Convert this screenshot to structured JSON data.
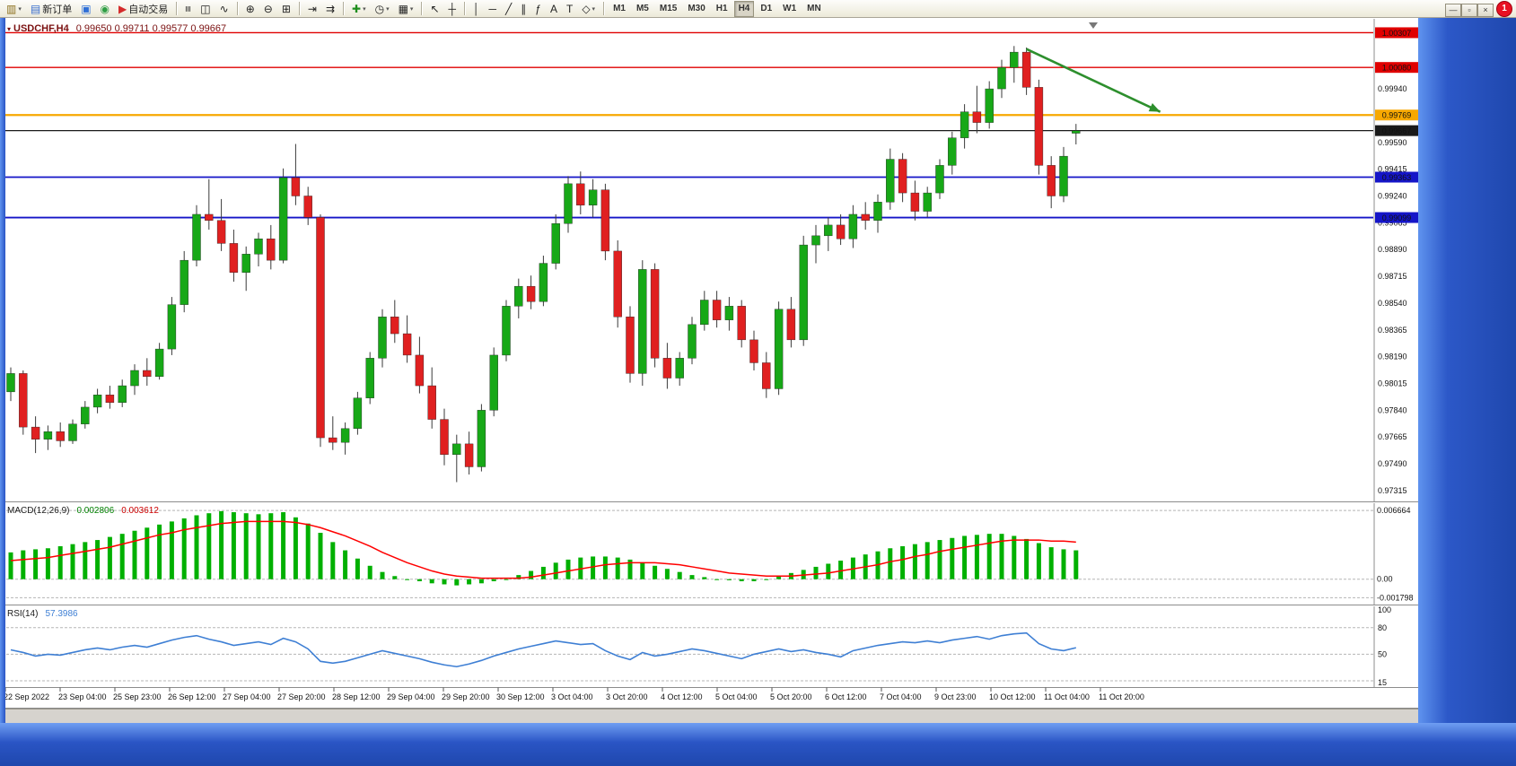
{
  "window": {
    "notification_count": "1",
    "controls": [
      {
        "name": "minimize-button",
        "glyph": "—"
      },
      {
        "name": "restore-button",
        "glyph": "▫"
      },
      {
        "name": "close-button",
        "glyph": "×"
      }
    ]
  },
  "toolbar": {
    "caret": "▾",
    "active_timeframe": "H4",
    "items": [
      {
        "name": "new-chart-button",
        "glyph": "▥",
        "color": "#8a6d1a",
        "caret": true
      },
      {
        "name": "new-order-button",
        "glyph": "▤",
        "color": "#3a6fd0",
        "label": "新订单"
      },
      {
        "name": "terminal-button",
        "glyph": "▣",
        "color": "#2f6fd6"
      },
      {
        "name": "metaquotes-chat-button",
        "glyph": "◉",
        "color": "#2f9e44"
      },
      {
        "name": "auto-trading-button",
        "glyph": "▶",
        "color": "#d42b2b",
        "label": "自动交易"
      },
      {
        "name": "sep"
      },
      {
        "name": "bars-chart-button",
        "glyph": "≡",
        "cls": "rot90"
      },
      {
        "name": "candles-chart-button",
        "glyph": "◫"
      },
      {
        "name": "line-chart-button",
        "glyph": "∿"
      },
      {
        "name": "sep"
      },
      {
        "name": "zoom-in-button",
        "glyph": "⊕"
      },
      {
        "name": "zoom-out-button",
        "glyph": "⊖"
      },
      {
        "name": "tile-windows-button",
        "glyph": "⊞"
      },
      {
        "name": "sep"
      },
      {
        "name": "auto-scroll-button",
        "glyph": "⇥"
      },
      {
        "name": "chart-shift-button",
        "glyph": "⇉"
      },
      {
        "name": "sep"
      },
      {
        "name": "indicators-button",
        "glyph": "✚",
        "color": "#1e8e1e",
        "caret": true
      },
      {
        "name": "periods-button",
        "glyph": "◷",
        "caret": true
      },
      {
        "name": "templates-button",
        "glyph": "▦",
        "caret": true
      },
      {
        "name": "sep"
      },
      {
        "name": "cursor-button",
        "glyph": "↖"
      },
      {
        "name": "crosshair-button",
        "glyph": "┼"
      },
      {
        "name": "sep"
      },
      {
        "name": "vertical-line-button",
        "glyph": "│"
      },
      {
        "name": "horizontal-line-button",
        "glyph": "─"
      },
      {
        "name": "trendline-button",
        "glyph": "╱"
      },
      {
        "name": "channel-button",
        "glyph": "∥"
      },
      {
        "name": "fibonacci-button",
        "glyph": "ƒ"
      },
      {
        "name": "text-button",
        "glyph": "A"
      },
      {
        "name": "label-button",
        "glyph": "T"
      },
      {
        "name": "shapes-button",
        "glyph": "◇",
        "caret": true
      },
      {
        "name": "sep"
      },
      {
        "name": "tf-m1-button",
        "tf": "M1"
      },
      {
        "name": "tf-m5-button",
        "tf": "M5"
      },
      {
        "name": "tf-m15-button",
        "tf": "M15"
      },
      {
        "name": "tf-m30-button",
        "tf": "M30"
      },
      {
        "name": "tf-h1-button",
        "tf": "H1"
      },
      {
        "name": "tf-h4-button",
        "tf": "H4"
      },
      {
        "name": "tf-d1-button",
        "tf": "D1"
      },
      {
        "name": "tf-w1-button",
        "tf": "W1"
      },
      {
        "name": "tf-mn-button",
        "tf": "MN"
      }
    ]
  },
  "chart_data": {
    "type": "candlestick",
    "symbol": "USDCHF",
    "timeframe": "H4",
    "title": {
      "marker": "▾",
      "symbol": "USDCHF,H4",
      "ohlc": "0.99650 0.99711 0.99577 0.99667"
    },
    "colors": {
      "bull": "#17a817",
      "bear": "#e02020",
      "wick": "#3a3a3a",
      "macd_hist": "#00b000",
      "macd_signal": "#ff0000",
      "rsi_line": "#3e7fd4",
      "arrow": "#2d8f2d",
      "line_red": "#e00000",
      "line_orange": "#f7a800",
      "line_blue": "#1515c8",
      "line_black": "#1a1a1a"
    },
    "price_axis_labels": [
      "0.99940",
      "0.99590",
      "0.99415",
      "0.99240",
      "0.99065",
      "0.98890",
      "0.98715",
      "0.98540",
      "0.98365",
      "0.98190",
      "0.98015",
      "0.97840",
      "0.97665",
      "0.97490",
      "0.97315"
    ],
    "hlines": [
      {
        "label": "1.00307",
        "color": "#e00000",
        "width": 1.3
      },
      {
        "label": "1.00080",
        "color": "#e00000",
        "width": 1.3
      },
      {
        "label": "0.99769",
        "color": "#f7a800",
        "width": 2.2
      },
      {
        "label": "0.99667",
        "color": "#1a1a1a",
        "width": 1.2
      },
      {
        "label": "0.99363",
        "color": "#1515c8",
        "width": 1.8
      },
      {
        "label": "0.99099",
        "color": "#1515c8",
        "width": 1.8
      }
    ],
    "time_axis_labels": [
      "22 Sep 2022",
      "23 Sep 04:00",
      "25 Sep 23:00",
      "26 Sep 12:00",
      "27 Sep 04:00",
      "27 Sep 20:00",
      "28 Sep 12:00",
      "29 Sep 04:00",
      "29 Sep 20:00",
      "30 Sep 12:00",
      "3 Oct 04:00",
      "3 Oct 20:00",
      "4 Oct 12:00",
      "5 Oct 04:00",
      "5 Oct 20:00",
      "6 Oct 12:00",
      "7 Oct 04:00",
      "9 Oct 23:00",
      "10 Oct 12:00",
      "11 Oct 04:00",
      "11 Oct 20:00"
    ],
    "trend_arrow": {
      "from_bar": 82,
      "from_price": 1.002,
      "to_bar": 92.8,
      "to_price": 0.9979
    },
    "candles": [
      [
        0.9796,
        0.9812,
        0.979,
        0.9808
      ],
      [
        0.9808,
        0.981,
        0.9768,
        0.9773
      ],
      [
        0.9773,
        0.978,
        0.9756,
        0.9765
      ],
      [
        0.9765,
        0.9774,
        0.9758,
        0.977
      ],
      [
        0.977,
        0.9776,
        0.976,
        0.9764
      ],
      [
        0.9764,
        0.9778,
        0.9762,
        0.9775
      ],
      [
        0.9775,
        0.979,
        0.9772,
        0.9786
      ],
      [
        0.9786,
        0.9798,
        0.9782,
        0.9794
      ],
      [
        0.9794,
        0.98,
        0.9785,
        0.9789
      ],
      [
        0.9789,
        0.9804,
        0.9786,
        0.98
      ],
      [
        0.98,
        0.9814,
        0.9794,
        0.981
      ],
      [
        0.981,
        0.9818,
        0.98,
        0.9806
      ],
      [
        0.9806,
        0.9828,
        0.9804,
        0.9824
      ],
      [
        0.9824,
        0.9858,
        0.982,
        0.9853
      ],
      [
        0.9853,
        0.9888,
        0.9848,
        0.9882
      ],
      [
        0.9882,
        0.9918,
        0.9878,
        0.9912
      ],
      [
        0.9912,
        0.9935,
        0.9902,
        0.9908
      ],
      [
        0.9908,
        0.9922,
        0.9888,
        0.9893
      ],
      [
        0.9893,
        0.9902,
        0.9868,
        0.9874
      ],
      [
        0.9874,
        0.9891,
        0.9862,
        0.9886
      ],
      [
        0.9886,
        0.99,
        0.9878,
        0.9896
      ],
      [
        0.9896,
        0.9905,
        0.9876,
        0.9882
      ],
      [
        0.9882,
        0.9942,
        0.988,
        0.9936
      ],
      [
        0.9936,
        0.9958,
        0.9918,
        0.9924
      ],
      [
        0.9924,
        0.993,
        0.9905,
        0.991
      ],
      [
        0.991,
        0.9912,
        0.976,
        0.9766
      ],
      [
        0.9766,
        0.978,
        0.9758,
        0.9763
      ],
      [
        0.9763,
        0.9776,
        0.9755,
        0.9772
      ],
      [
        0.9772,
        0.9796,
        0.9768,
        0.9792
      ],
      [
        0.9792,
        0.9822,
        0.9788,
        0.9818
      ],
      [
        0.9818,
        0.985,
        0.9812,
        0.9845
      ],
      [
        0.9845,
        0.9856,
        0.9828,
        0.9834
      ],
      [
        0.9834,
        0.9846,
        0.9815,
        0.982
      ],
      [
        0.982,
        0.9832,
        0.9795,
        0.98
      ],
      [
        0.98,
        0.9812,
        0.9772,
        0.9778
      ],
      [
        0.9778,
        0.9785,
        0.9748,
        0.9755
      ],
      [
        0.9755,
        0.9768,
        0.9737,
        0.9762
      ],
      [
        0.9762,
        0.977,
        0.9742,
        0.9747
      ],
      [
        0.9747,
        0.9788,
        0.9744,
        0.9784
      ],
      [
        0.9784,
        0.9825,
        0.978,
        0.982
      ],
      [
        0.982,
        0.9856,
        0.9816,
        0.9852
      ],
      [
        0.9852,
        0.987,
        0.9844,
        0.9865
      ],
      [
        0.9865,
        0.9872,
        0.985,
        0.9855
      ],
      [
        0.9855,
        0.9885,
        0.9852,
        0.988
      ],
      [
        0.988,
        0.9912,
        0.9876,
        0.9906
      ],
      [
        0.9906,
        0.9937,
        0.99,
        0.9932
      ],
      [
        0.9932,
        0.994,
        0.9912,
        0.9918
      ],
      [
        0.9918,
        0.9935,
        0.991,
        0.9928
      ],
      [
        0.9928,
        0.9932,
        0.9882,
        0.9888
      ],
      [
        0.9888,
        0.9895,
        0.9838,
        0.9845
      ],
      [
        0.9845,
        0.9852,
        0.9802,
        0.9808
      ],
      [
        0.9808,
        0.9882,
        0.98,
        0.9876
      ],
      [
        0.9876,
        0.988,
        0.9812,
        0.9818
      ],
      [
        0.9818,
        0.9828,
        0.9798,
        0.9805
      ],
      [
        0.9805,
        0.9822,
        0.98,
        0.9818
      ],
      [
        0.9818,
        0.9845,
        0.9814,
        0.984
      ],
      [
        0.984,
        0.9862,
        0.9836,
        0.9856
      ],
      [
        0.9856,
        0.9862,
        0.9838,
        0.9843
      ],
      [
        0.9843,
        0.9858,
        0.9836,
        0.9852
      ],
      [
        0.9852,
        0.9856,
        0.9825,
        0.983
      ],
      [
        0.983,
        0.9836,
        0.981,
        0.9815
      ],
      [
        0.9815,
        0.9822,
        0.9792,
        0.9798
      ],
      [
        0.9798,
        0.9855,
        0.9794,
        0.985
      ],
      [
        0.985,
        0.9858,
        0.9825,
        0.983
      ],
      [
        0.983,
        0.9898,
        0.9826,
        0.9892
      ],
      [
        0.9892,
        0.9905,
        0.988,
        0.9898
      ],
      [
        0.9898,
        0.991,
        0.9888,
        0.9905
      ],
      [
        0.9905,
        0.9912,
        0.9892,
        0.9896
      ],
      [
        0.9896,
        0.9918,
        0.989,
        0.9912
      ],
      [
        0.9912,
        0.992,
        0.9902,
        0.9908
      ],
      [
        0.9908,
        0.9925,
        0.99,
        0.992
      ],
      [
        0.992,
        0.9955,
        0.9915,
        0.9948
      ],
      [
        0.9948,
        0.9952,
        0.992,
        0.9926
      ],
      [
        0.9926,
        0.9934,
        0.9908,
        0.9914
      ],
      [
        0.9914,
        0.993,
        0.991,
        0.9926
      ],
      [
        0.9926,
        0.9948,
        0.9922,
        0.9944
      ],
      [
        0.9944,
        0.9966,
        0.9938,
        0.9962
      ],
      [
        0.9962,
        0.9984,
        0.9955,
        0.9979
      ],
      [
        0.9979,
        0.9996,
        0.9965,
        0.9972
      ],
      [
        0.9972,
        0.9999,
        0.9968,
        0.9994
      ],
      [
        0.9994,
        1.0013,
        0.9988,
        1.0008
      ],
      [
        1.0008,
        1.0022,
        0.9998,
        1.0018
      ],
      [
        1.0018,
        1.0021,
        0.999,
        0.9995
      ],
      [
        0.9995,
        1.0,
        0.9938,
        0.9944
      ],
      [
        0.9944,
        0.995,
        0.9916,
        0.9924
      ],
      [
        0.9924,
        0.9956,
        0.992,
        0.995
      ],
      [
        0.9965,
        0.99711,
        0.99577,
        0.99667
      ]
    ],
    "macd": {
      "name": "MACD(12,26,9)",
      "value_main": "0.002806",
      "value_signal": "0.003612",
      "axis_labels": [
        "0.006664",
        "0.00",
        "-0.001798"
      ],
      "histogram": [
        0.0026,
        0.0028,
        0.0029,
        0.003,
        0.0032,
        0.0034,
        0.0036,
        0.0038,
        0.0041,
        0.0044,
        0.0047,
        0.005,
        0.0053,
        0.0056,
        0.0059,
        0.0062,
        0.0064,
        0.0066,
        0.0065,
        0.0064,
        0.0063,
        0.0064,
        0.0065,
        0.006,
        0.0054,
        0.0045,
        0.0036,
        0.0028,
        0.002,
        0.0013,
        0.0007,
        0.0003,
        0.0,
        -0.0002,
        -0.0004,
        -0.0005,
        -0.0006,
        -0.0005,
        -0.0004,
        -0.0002,
        0.0,
        0.0004,
        0.0008,
        0.0012,
        0.0016,
        0.0019,
        0.0021,
        0.0022,
        0.0022,
        0.0021,
        0.0019,
        0.0016,
        0.0013,
        0.001,
        0.0007,
        0.0004,
        0.0002,
        0.0,
        -0.0001,
        -0.0002,
        -0.0002,
        0.0,
        0.0003,
        0.0006,
        0.0009,
        0.0012,
        0.0015,
        0.0018,
        0.0021,
        0.0024,
        0.0027,
        0.003,
        0.0032,
        0.0034,
        0.0036,
        0.0038,
        0.004,
        0.0042,
        0.0043,
        0.0044,
        0.0044,
        0.0042,
        0.0039,
        0.0035,
        0.0031,
        0.0029,
        0.0028
      ],
      "signal": [
        0.0018,
        0.0019,
        0.002,
        0.0021,
        0.0023,
        0.0025,
        0.0027,
        0.0029,
        0.0031,
        0.0034,
        0.0037,
        0.004,
        0.0043,
        0.0045,
        0.0048,
        0.005,
        0.0052,
        0.0054,
        0.0055,
        0.0056,
        0.0056,
        0.0056,
        0.0056,
        0.0055,
        0.0053,
        0.005,
        0.0046,
        0.0042,
        0.0037,
        0.0032,
        0.0026,
        0.0021,
        0.0016,
        0.0012,
        0.0008,
        0.0005,
        0.0003,
        0.0002,
        0.0001,
        0.0001,
        0.0001,
        0.0001,
        0.0002,
        0.0004,
        0.0006,
        0.0008,
        0.001,
        0.0012,
        0.0014,
        0.0015,
        0.0016,
        0.0016,
        0.0016,
        0.0015,
        0.0014,
        0.0012,
        0.001,
        0.0008,
        0.0006,
        0.0005,
        0.0004,
        0.0003,
        0.0003,
        0.0003,
        0.0004,
        0.0005,
        0.0006,
        0.0008,
        0.001,
        0.0012,
        0.0014,
        0.0017,
        0.0019,
        0.0022,
        0.0024,
        0.0027,
        0.0029,
        0.0031,
        0.0033,
        0.0035,
        0.0037,
        0.0038,
        0.0038,
        0.0038,
        0.0037,
        0.0037,
        0.0036
      ]
    },
    "rsi": {
      "name": "RSI(14)",
      "value": "57.3986",
      "axis_labels": [
        "100",
        "80",
        "50",
        "15"
      ],
      "levels": [
        80,
        50,
        20
      ],
      "values": [
        55,
        52,
        48,
        50,
        49,
        52,
        55,
        57,
        55,
        58,
        60,
        58,
        62,
        66,
        69,
        71,
        67,
        64,
        60,
        62,
        64,
        61,
        68,
        64,
        56,
        42,
        40,
        42,
        46,
        50,
        54,
        51,
        48,
        45,
        41,
        38,
        36,
        39,
        43,
        48,
        52,
        56,
        59,
        62,
        65,
        63,
        61,
        62,
        54,
        48,
        44,
        52,
        48,
        50,
        53,
        56,
        54,
        51,
        48,
        45,
        50,
        53,
        56,
        53,
        55,
        52,
        50,
        47,
        54,
        57,
        60,
        62,
        64,
        63,
        65,
        63,
        66,
        68,
        70,
        67,
        71,
        73,
        74,
        62,
        56,
        54,
        57.4
      ]
    }
  }
}
